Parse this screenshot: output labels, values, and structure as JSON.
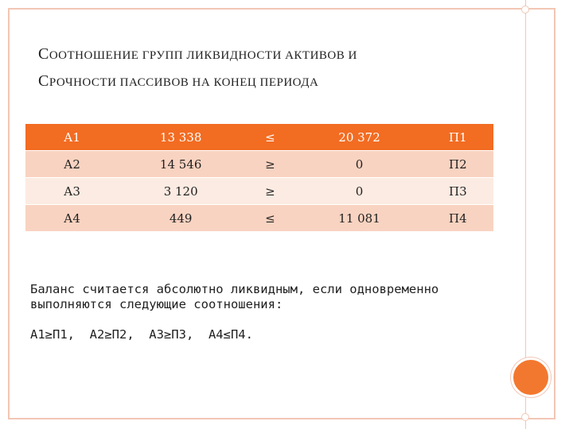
{
  "title": {
    "line1": "Соотношение групп ликвидности активов и",
    "line2": "срочности пассивов на конец периода"
  },
  "table": {
    "rows": [
      {
        "asset": "А1",
        "asset_value": "13 338",
        "sign": "≤",
        "liability_value": "20 372",
        "liability": "П1"
      },
      {
        "asset": "А2",
        "asset_value": "14 546",
        "sign": "≥",
        "liability_value": "0",
        "liability": "П2"
      },
      {
        "asset": "А3",
        "asset_value": "3 120",
        "sign": "≥",
        "liability_value": "0",
        "liability": "П3"
      },
      {
        "asset": "А4",
        "asset_value": "449",
        "sign": "≤",
        "liability_value": "11 081",
        "liability": "П4"
      }
    ]
  },
  "note": {
    "text": "Баланс считается абсолютно ликвидным, если одновременно выполняются следующие соотношения:",
    "conditions": "А1≥П1,  А2≥П2,  А3≥П3,  А4≤П4."
  },
  "colors": {
    "accent": "#f26c22",
    "row_odd": "#f9d3c1",
    "row_even": "#fcebe2",
    "frame": "#f2c6b4",
    "circle": "#f3782f"
  }
}
